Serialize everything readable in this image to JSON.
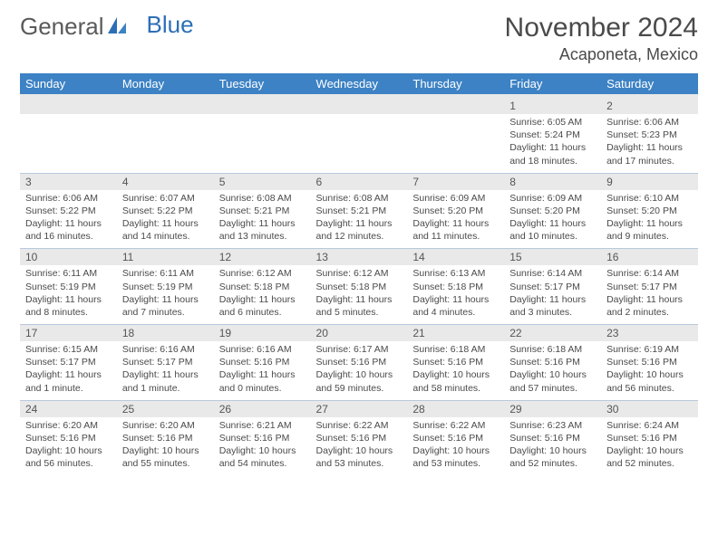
{
  "logo": {
    "word1": "General",
    "word2": "Blue"
  },
  "title": "November 2024",
  "location": "Acaponeta, Mexico",
  "colors": {
    "header_bg": "#3d82c4",
    "header_fg": "#ffffff",
    "daynum_bg": "#e9e9e9",
    "border": "#b8c8dc",
    "text": "#4a4a4a",
    "logo_gray": "#5a5a5a",
    "logo_blue": "#2d6fb6"
  },
  "day_headers": [
    "Sunday",
    "Monday",
    "Tuesday",
    "Wednesday",
    "Thursday",
    "Friday",
    "Saturday"
  ],
  "weeks": [
    [
      {
        "n": "",
        "lines": []
      },
      {
        "n": "",
        "lines": []
      },
      {
        "n": "",
        "lines": []
      },
      {
        "n": "",
        "lines": []
      },
      {
        "n": "",
        "lines": []
      },
      {
        "n": "1",
        "lines": [
          "Sunrise: 6:05 AM",
          "Sunset: 5:24 PM",
          "Daylight: 11 hours and 18 minutes."
        ]
      },
      {
        "n": "2",
        "lines": [
          "Sunrise: 6:06 AM",
          "Sunset: 5:23 PM",
          "Daylight: 11 hours and 17 minutes."
        ]
      }
    ],
    [
      {
        "n": "3",
        "lines": [
          "Sunrise: 6:06 AM",
          "Sunset: 5:22 PM",
          "Daylight: 11 hours and 16 minutes."
        ]
      },
      {
        "n": "4",
        "lines": [
          "Sunrise: 6:07 AM",
          "Sunset: 5:22 PM",
          "Daylight: 11 hours and 14 minutes."
        ]
      },
      {
        "n": "5",
        "lines": [
          "Sunrise: 6:08 AM",
          "Sunset: 5:21 PM",
          "Daylight: 11 hours and 13 minutes."
        ]
      },
      {
        "n": "6",
        "lines": [
          "Sunrise: 6:08 AM",
          "Sunset: 5:21 PM",
          "Daylight: 11 hours and 12 minutes."
        ]
      },
      {
        "n": "7",
        "lines": [
          "Sunrise: 6:09 AM",
          "Sunset: 5:20 PM",
          "Daylight: 11 hours and 11 minutes."
        ]
      },
      {
        "n": "8",
        "lines": [
          "Sunrise: 6:09 AM",
          "Sunset: 5:20 PM",
          "Daylight: 11 hours and 10 minutes."
        ]
      },
      {
        "n": "9",
        "lines": [
          "Sunrise: 6:10 AM",
          "Sunset: 5:20 PM",
          "Daylight: 11 hours and 9 minutes."
        ]
      }
    ],
    [
      {
        "n": "10",
        "lines": [
          "Sunrise: 6:11 AM",
          "Sunset: 5:19 PM",
          "Daylight: 11 hours and 8 minutes."
        ]
      },
      {
        "n": "11",
        "lines": [
          "Sunrise: 6:11 AM",
          "Sunset: 5:19 PM",
          "Daylight: 11 hours and 7 minutes."
        ]
      },
      {
        "n": "12",
        "lines": [
          "Sunrise: 6:12 AM",
          "Sunset: 5:18 PM",
          "Daylight: 11 hours and 6 minutes."
        ]
      },
      {
        "n": "13",
        "lines": [
          "Sunrise: 6:12 AM",
          "Sunset: 5:18 PM",
          "Daylight: 11 hours and 5 minutes."
        ]
      },
      {
        "n": "14",
        "lines": [
          "Sunrise: 6:13 AM",
          "Sunset: 5:18 PM",
          "Daylight: 11 hours and 4 minutes."
        ]
      },
      {
        "n": "15",
        "lines": [
          "Sunrise: 6:14 AM",
          "Sunset: 5:17 PM",
          "Daylight: 11 hours and 3 minutes."
        ]
      },
      {
        "n": "16",
        "lines": [
          "Sunrise: 6:14 AM",
          "Sunset: 5:17 PM",
          "Daylight: 11 hours and 2 minutes."
        ]
      }
    ],
    [
      {
        "n": "17",
        "lines": [
          "Sunrise: 6:15 AM",
          "Sunset: 5:17 PM",
          "Daylight: 11 hours and 1 minute."
        ]
      },
      {
        "n": "18",
        "lines": [
          "Sunrise: 6:16 AM",
          "Sunset: 5:17 PM",
          "Daylight: 11 hours and 1 minute."
        ]
      },
      {
        "n": "19",
        "lines": [
          "Sunrise: 6:16 AM",
          "Sunset: 5:16 PM",
          "Daylight: 11 hours and 0 minutes."
        ]
      },
      {
        "n": "20",
        "lines": [
          "Sunrise: 6:17 AM",
          "Sunset: 5:16 PM",
          "Daylight: 10 hours and 59 minutes."
        ]
      },
      {
        "n": "21",
        "lines": [
          "Sunrise: 6:18 AM",
          "Sunset: 5:16 PM",
          "Daylight: 10 hours and 58 minutes."
        ]
      },
      {
        "n": "22",
        "lines": [
          "Sunrise: 6:18 AM",
          "Sunset: 5:16 PM",
          "Daylight: 10 hours and 57 minutes."
        ]
      },
      {
        "n": "23",
        "lines": [
          "Sunrise: 6:19 AM",
          "Sunset: 5:16 PM",
          "Daylight: 10 hours and 56 minutes."
        ]
      }
    ],
    [
      {
        "n": "24",
        "lines": [
          "Sunrise: 6:20 AM",
          "Sunset: 5:16 PM",
          "Daylight: 10 hours and 56 minutes."
        ]
      },
      {
        "n": "25",
        "lines": [
          "Sunrise: 6:20 AM",
          "Sunset: 5:16 PM",
          "Daylight: 10 hours and 55 minutes."
        ]
      },
      {
        "n": "26",
        "lines": [
          "Sunrise: 6:21 AM",
          "Sunset: 5:16 PM",
          "Daylight: 10 hours and 54 minutes."
        ]
      },
      {
        "n": "27",
        "lines": [
          "Sunrise: 6:22 AM",
          "Sunset: 5:16 PM",
          "Daylight: 10 hours and 53 minutes."
        ]
      },
      {
        "n": "28",
        "lines": [
          "Sunrise: 6:22 AM",
          "Sunset: 5:16 PM",
          "Daylight: 10 hours and 53 minutes."
        ]
      },
      {
        "n": "29",
        "lines": [
          "Sunrise: 6:23 AM",
          "Sunset: 5:16 PM",
          "Daylight: 10 hours and 52 minutes."
        ]
      },
      {
        "n": "30",
        "lines": [
          "Sunrise: 6:24 AM",
          "Sunset: 5:16 PM",
          "Daylight: 10 hours and 52 minutes."
        ]
      }
    ]
  ]
}
